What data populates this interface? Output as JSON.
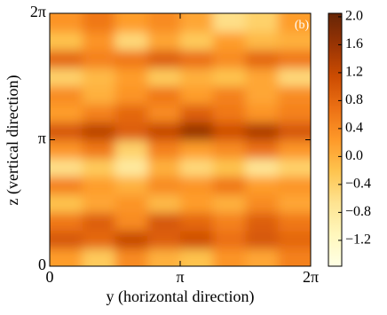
{
  "chart_data": {
    "type": "heatmap",
    "annotation": "(b)",
    "xlabel": "y (horizontal direction)",
    "ylabel": "z (vertical direction)",
    "xlim": [
      0,
      6.2832
    ],
    "ylim": [
      0,
      6.2832
    ],
    "xticks": [
      0,
      {
        "value": 3.1416,
        "label": "π"
      },
      {
        "value": 6.2832,
        "label": "2π"
      }
    ],
    "yticks": [
      0,
      {
        "value": 3.1416,
        "label": "π"
      },
      {
        "value": 6.2832,
        "label": "2π"
      }
    ],
    "colormap": [
      "#ffffe5",
      "#fff7bc",
      "#fee391",
      "#fec44f",
      "#fe9929",
      "#ec7014",
      "#cc4c02",
      "#993404",
      "#662506"
    ],
    "clim": [
      -1.57,
      2.05
    ],
    "cticks": [
      {
        "value": 2,
        "label": "2.0"
      },
      1.6,
      1.2,
      0.8,
      0.4,
      {
        "value": 0,
        "label": "0.0"
      },
      {
        "value": -0.4,
        "label": "−0.4"
      },
      {
        "value": -0.8,
        "label": "−0.8"
      },
      {
        "value": -1.2,
        "label": "−1.2"
      }
    ],
    "values": [
      [
        0.2,
        -0.3,
        0.4,
        0.0,
        -0.2,
        0.3,
        0.1,
        0.5
      ],
      [
        1.0,
        0.8,
        1.2,
        0.9,
        1.1,
        0.7,
        1.0,
        0.8
      ],
      [
        0.6,
        0.9,
        0.4,
        1.0,
        0.8,
        0.5,
        0.9,
        0.6
      ],
      [
        -0.2,
        0.1,
        0.3,
        -0.1,
        0.2,
        0.0,
        0.4,
        0.1
      ],
      [
        0.5,
        0.2,
        0.0,
        0.4,
        0.3,
        0.6,
        0.2,
        0.3
      ],
      [
        -0.6,
        -0.3,
        -0.8,
        0.0,
        -0.5,
        -0.2,
        -0.7,
        -0.4
      ],
      [
        0.3,
        0.6,
        -0.4,
        0.5,
        0.2,
        0.4,
        0.7,
        0.3
      ],
      [
        1.0,
        1.3,
        0.9,
        1.2,
        1.6,
        1.1,
        1.4,
        1.0
      ],
      [
        0.2,
        0.5,
        0.8,
        0.4,
        0.9,
        0.6,
        0.3,
        0.5
      ],
      [
        0.4,
        0.0,
        0.3,
        0.6,
        0.2,
        0.5,
        0.1,
        0.4
      ],
      [
        -0.4,
        -0.1,
        0.2,
        -0.3,
        0.0,
        -0.2,
        0.1,
        -0.5
      ],
      [
        0.8,
        0.5,
        0.6,
        0.9,
        0.7,
        0.4,
        0.8,
        0.6
      ],
      [
        -0.2,
        0.3,
        -0.5,
        0.1,
        -0.3,
        0.2,
        -0.1,
        0.0
      ],
      [
        0.3,
        0.6,
        0.2,
        0.4,
        0.1,
        -0.6,
        -0.4,
        0.2
      ]
    ]
  }
}
